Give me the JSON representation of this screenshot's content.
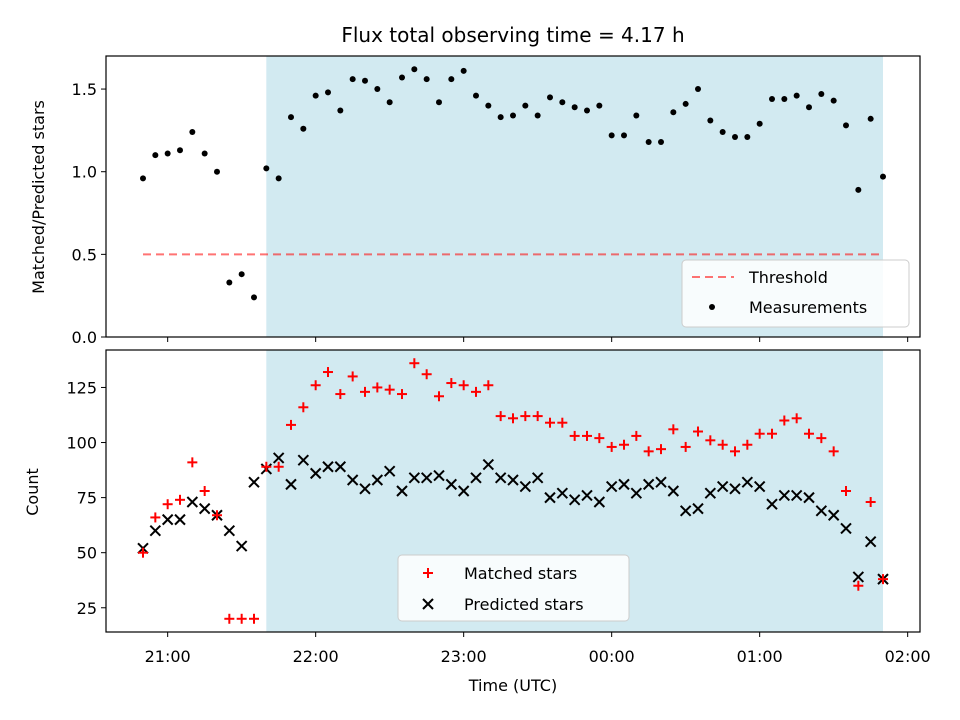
{
  "title": "Flux total observing time = 4.17 h",
  "colors": {
    "shade": "#add8e6",
    "threshold": "#ff0000",
    "matched": "#ff0000",
    "predicted": "#000000",
    "measurement": "#000000"
  },
  "chart_data": [
    {
      "type": "scatter",
      "ylabel": "Matched/Predicted stars",
      "ylim": [
        0,
        1.7
      ],
      "yticks": [
        0.0,
        0.5,
        1.0,
        1.5
      ],
      "ytick_labels": [
        "0.0",
        "0.5",
        "1.0",
        "1.5"
      ],
      "xlim": [
        "20:35",
        "02:05"
      ],
      "grid": false,
      "legend_position": "lower right",
      "shaded_interval": [
        "21:40",
        "25:50"
      ],
      "threshold": {
        "name": "Threshold",
        "value": 0.5,
        "x": [
          "20:50",
          "01:50"
        ]
      },
      "series": [
        {
          "name": "Measurements",
          "x": [
            "20:50",
            "20:55",
            "21:00",
            "21:05",
            "21:10",
            "21:15",
            "21:20",
            "21:25",
            "21:30",
            "21:35",
            "21:40",
            "21:45",
            "21:50",
            "21:55",
            "22:00",
            "22:05",
            "22:10",
            "22:15",
            "22:20",
            "22:25",
            "22:30",
            "22:35",
            "22:40",
            "22:45",
            "22:50",
            "22:55",
            "23:00",
            "23:05",
            "23:10",
            "23:15",
            "23:20",
            "23:25",
            "23:30",
            "23:35",
            "23:40",
            "23:45",
            "23:50",
            "23:55",
            "00:00",
            "00:05",
            "00:10",
            "00:15",
            "00:20",
            "00:25",
            "00:30",
            "00:35",
            "00:40",
            "00:45",
            "00:50",
            "00:55",
            "01:00",
            "01:05",
            "01:10",
            "01:15",
            "01:20",
            "01:25",
            "01:30",
            "01:35",
            "01:40",
            "01:45",
            "01:50"
          ],
          "y": [
            0.96,
            1.1,
            1.11,
            1.13,
            1.24,
            1.11,
            1.0,
            0.33,
            0.38,
            0.24,
            1.02,
            0.96,
            1.33,
            1.26,
            1.46,
            1.48,
            1.37,
            1.56,
            1.55,
            1.5,
            1.42,
            1.57,
            1.62,
            1.56,
            1.42,
            1.56,
            1.61,
            1.46,
            1.4,
            1.33,
            1.34,
            1.4,
            1.34,
            1.45,
            1.42,
            1.39,
            1.37,
            1.4,
            1.22,
            1.22,
            1.34,
            1.18,
            1.18,
            1.36,
            1.41,
            1.5,
            1.31,
            1.24,
            1.21,
            1.21,
            1.29,
            1.44,
            1.44,
            1.46,
            1.39,
            1.47,
            1.43,
            1.28,
            0.89,
            1.32,
            0.97
          ]
        }
      ]
    },
    {
      "type": "scatter",
      "xlabel": "Time (UTC)",
      "ylabel": "Count",
      "ylim": [
        14,
        142
      ],
      "yticks": [
        25,
        50,
        75,
        100,
        125
      ],
      "ytick_labels": [
        "25",
        "50",
        "75",
        "100",
        "125"
      ],
      "xticks": [
        "21:00",
        "22:00",
        "23:00",
        "24:00",
        "25:00",
        "26:00"
      ],
      "xtick_labels": [
        "21:00",
        "22:00",
        "23:00",
        "00:00",
        "01:00",
        "02:00"
      ],
      "xlim": [
        "20:35",
        "02:05"
      ],
      "grid": false,
      "legend_position": "lower center",
      "shaded_interval": [
        "21:40",
        "25:50"
      ],
      "x": [
        "20:50",
        "20:55",
        "21:00",
        "21:05",
        "21:10",
        "21:15",
        "21:20",
        "21:25",
        "21:30",
        "21:35",
        "21:40",
        "21:45",
        "21:50",
        "21:55",
        "22:00",
        "22:05",
        "22:10",
        "22:15",
        "22:20",
        "22:25",
        "22:30",
        "22:35",
        "22:40",
        "22:45",
        "22:50",
        "22:55",
        "23:00",
        "23:05",
        "23:10",
        "23:15",
        "23:20",
        "23:25",
        "23:30",
        "23:35",
        "23:40",
        "23:45",
        "23:50",
        "23:55",
        "00:00",
        "00:05",
        "00:10",
        "00:15",
        "00:20",
        "00:25",
        "00:30",
        "00:35",
        "00:40",
        "00:45",
        "00:50",
        "00:55",
        "01:00",
        "01:05",
        "01:10",
        "01:15",
        "01:20",
        "01:25",
        "01:30",
        "01:35",
        "01:40",
        "01:45",
        "01:50"
      ],
      "series": [
        {
          "name": "Matched stars",
          "marker": "plus",
          "values": [
            50,
            66,
            72,
            74,
            91,
            78,
            67,
            20,
            20,
            20,
            89,
            89,
            108,
            116,
            126,
            132,
            122,
            130,
            123,
            125,
            124,
            122,
            136,
            131,
            121,
            127,
            126,
            123,
            126,
            112,
            111,
            112,
            112,
            109,
            109,
            103,
            103,
            102,
            98,
            99,
            103,
            96,
            97,
            106,
            98,
            105,
            101,
            99,
            96,
            99,
            104,
            104,
            110,
            111,
            104,
            102,
            96,
            78,
            35,
            73,
            38
          ]
        },
        {
          "name": "Predicted stars",
          "marker": "x",
          "values": [
            52,
            60,
            65,
            65,
            73,
            70,
            67,
            60,
            53,
            82,
            88,
            93,
            81,
            92,
            86,
            89,
            89,
            83,
            79,
            83,
            87,
            78,
            84,
            84,
            85,
            81,
            78,
            84,
            90,
            84,
            83,
            80,
            84,
            75,
            77,
            74,
            76,
            73,
            80,
            81,
            77,
            81,
            82,
            78,
            69,
            70,
            77,
            80,
            79,
            82,
            80,
            72,
            76,
            76,
            75,
            69,
            67,
            61,
            39,
            55,
            38
          ]
        }
      ]
    }
  ]
}
